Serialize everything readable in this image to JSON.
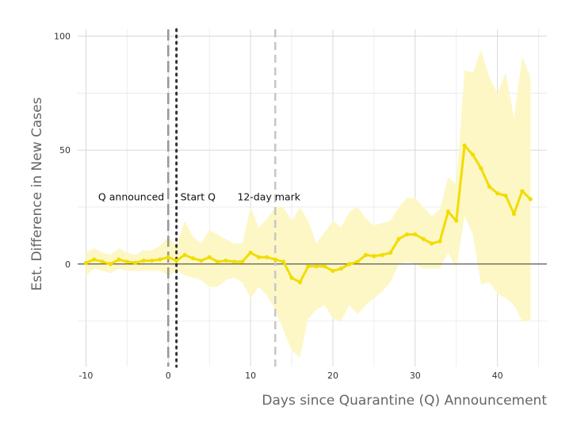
{
  "chart_data": {
    "type": "line",
    "title": "",
    "xlabel": "Days since Quarantine (Q) Announcement",
    "ylabel": "Est. Difference in New Cases",
    "xlim": [
      -11,
      46
    ],
    "ylim": [
      -45,
      103
    ],
    "x_ticks": [
      -10,
      0,
      10,
      20,
      30,
      40
    ],
    "y_ticks": [
      0,
      50,
      100
    ],
    "grid": true,
    "series": [
      {
        "color": "#f2dc00",
        "band_color": "#fdf7c6",
        "points": [
          {
            "x": -10,
            "y": 0.5,
            "lo": -5,
            "hi": 5
          },
          {
            "x": -9,
            "y": 2,
            "lo": -2,
            "hi": 7
          },
          {
            "x": -8,
            "y": 1,
            "lo": -3,
            "hi": 5
          },
          {
            "x": -7,
            "y": 0,
            "lo": -4,
            "hi": 4
          },
          {
            "x": -6,
            "y": 2,
            "lo": -2,
            "hi": 7
          },
          {
            "x": -5,
            "y": 1,
            "lo": -3,
            "hi": 5
          },
          {
            "x": -4,
            "y": 0.5,
            "lo": -3,
            "hi": 4
          },
          {
            "x": -3,
            "y": 1.5,
            "lo": -3,
            "hi": 6
          },
          {
            "x": -2,
            "y": 1.5,
            "lo": -3,
            "hi": 6
          },
          {
            "x": -1,
            "y": 2,
            "lo": -3,
            "hi": 8
          },
          {
            "x": 0,
            "y": 3,
            "lo": -5,
            "hi": 12
          },
          {
            "x": 1,
            "y": 1.5,
            "lo": -3,
            "hi": 8
          },
          {
            "x": 2,
            "y": 4,
            "lo": -5,
            "hi": 19
          },
          {
            "x": 3,
            "y": 2.5,
            "lo": -6,
            "hi": 12
          },
          {
            "x": 4,
            "y": 1.5,
            "lo": -7,
            "hi": 9
          },
          {
            "x": 5,
            "y": 3,
            "lo": -10,
            "hi": 15
          },
          {
            "x": 6,
            "y": 1,
            "lo": -10,
            "hi": 13
          },
          {
            "x": 7,
            "y": 1.5,
            "lo": -7,
            "hi": 11
          },
          {
            "x": 8,
            "y": 1,
            "lo": -6,
            "hi": 9
          },
          {
            "x": 9,
            "y": 1,
            "lo": -8,
            "hi": 9
          },
          {
            "x": 10,
            "y": 5,
            "lo": -15,
            "hi": 25
          },
          {
            "x": 11,
            "y": 3,
            "lo": -10,
            "hi": 16
          },
          {
            "x": 12,
            "y": 3,
            "lo": -14,
            "hi": 20
          },
          {
            "x": 13,
            "y": 2,
            "lo": -20,
            "hi": 25
          },
          {
            "x": 14,
            "y": 1,
            "lo": -29,
            "hi": 25
          },
          {
            "x": 15,
            "y": -6,
            "lo": -38,
            "hi": 19
          },
          {
            "x": 16,
            "y": -8,
            "lo": -41,
            "hi": 25
          },
          {
            "x": 17,
            "y": -1,
            "lo": -24,
            "hi": 19
          },
          {
            "x": 18,
            "y": -1,
            "lo": -20,
            "hi": 9
          },
          {
            "x": 19,
            "y": -1,
            "lo": -18,
            "hi": 14
          },
          {
            "x": 20,
            "y": -3,
            "lo": -24,
            "hi": 19
          },
          {
            "x": 21,
            "y": -2,
            "lo": -25,
            "hi": 16
          },
          {
            "x": 22,
            "y": 0,
            "lo": -18,
            "hi": 23
          },
          {
            "x": 23,
            "y": 1,
            "lo": -22,
            "hi": 25
          },
          {
            "x": 24,
            "y": 4,
            "lo": -18,
            "hi": 20
          },
          {
            "x": 25,
            "y": 3.5,
            "lo": -15,
            "hi": 17
          },
          {
            "x": 26,
            "y": 4,
            "lo": -12,
            "hi": 18
          },
          {
            "x": 27,
            "y": 5,
            "lo": -8,
            "hi": 19
          },
          {
            "x": 28,
            "y": 11,
            "lo": 0,
            "hi": 25
          },
          {
            "x": 29,
            "y": 13,
            "lo": 1,
            "hi": 29
          },
          {
            "x": 30,
            "y": 13,
            "lo": 0,
            "hi": 29
          },
          {
            "x": 31,
            "y": 11,
            "lo": -2,
            "hi": 25
          },
          {
            "x": 32,
            "y": 9,
            "lo": -2,
            "hi": 21
          },
          {
            "x": 33,
            "y": 10,
            "lo": -2,
            "hi": 24
          },
          {
            "x": 34,
            "y": 23,
            "lo": 5,
            "hi": 38
          },
          {
            "x": 35,
            "y": 19,
            "lo": -2,
            "hi": 35
          },
          {
            "x": 36,
            "y": 52,
            "lo": 21,
            "hi": 85
          },
          {
            "x": 37,
            "y": 48,
            "lo": 13,
            "hi": 84
          },
          {
            "x": 38,
            "y": 42,
            "lo": -9,
            "hi": 94
          },
          {
            "x": 39,
            "y": 34,
            "lo": -8,
            "hi": 82
          },
          {
            "x": 40,
            "y": 31,
            "lo": -13,
            "hi": 75
          },
          {
            "x": 41,
            "y": 30,
            "lo": -15,
            "hi": 84
          },
          {
            "x": 42,
            "y": 22,
            "lo": -18,
            "hi": 64
          },
          {
            "x": 43,
            "y": 32,
            "lo": -25,
            "hi": 91
          },
          {
            "x": 44,
            "y": 28.5,
            "lo": -25,
            "hi": 82
          }
        ]
      }
    ],
    "reference_lines": [
      {
        "x": 0,
        "style": "dashed",
        "color": "#999999",
        "label": "Q announced"
      },
      {
        "x": 1,
        "style": "dotted",
        "color": "#333333",
        "label": "Start Q"
      },
      {
        "x": 13,
        "style": "dashed",
        "color": "#c8c8c8",
        "label": "12-day mark"
      }
    ],
    "zero_line": {
      "y": 0,
      "color": "#333333"
    }
  }
}
